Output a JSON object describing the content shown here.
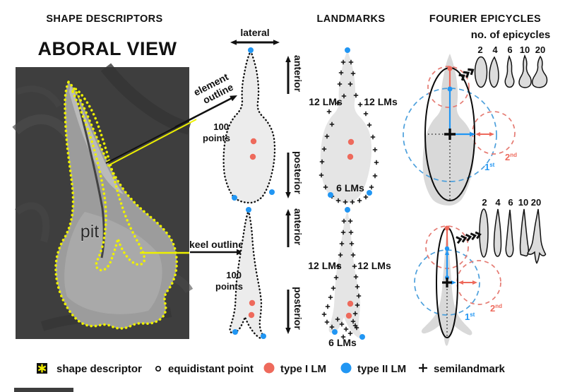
{
  "headers": {
    "shape_descriptors": "SHAPE DESCRIPTORS",
    "landmarks": "LANDMARKS",
    "fourier_epicycles": "FOURIER EPICYCLES"
  },
  "aboral_view": {
    "title": "ABORAL VIEW",
    "pit_label": "pit"
  },
  "callouts": {
    "element_outline_line1": "element",
    "element_outline_line2": "outline",
    "keel_outline": "keel outline",
    "points_count": "100",
    "points_word": "points"
  },
  "axes": {
    "lateral": "lateral",
    "anterior": "anterior",
    "posterior": "posterior"
  },
  "landmark_counts": {
    "side": "12 LMs",
    "bottom": "6 LMs"
  },
  "epicycles": {
    "subtitle": "no. of epicycles",
    "counts": [
      "2",
      "4",
      "6",
      "10",
      "20"
    ],
    "first_base": "1",
    "first_sup": "st",
    "second_base": "2",
    "second_sup": "nd"
  },
  "legend": {
    "shape_descriptor": "shape descriptor",
    "equidistant_point": "equidistant point",
    "type1": "type I LM",
    "type2": "type II LM",
    "semilandmark": "semilandmark"
  },
  "colors": {
    "type1_red": "#ee6a5c",
    "type2_blue": "#2196f3",
    "dashed_red": "#e57b73",
    "dashed_blue": "#4da0dc",
    "descriptor_yellow": "#edf000",
    "shape_fill": "#ececec"
  }
}
